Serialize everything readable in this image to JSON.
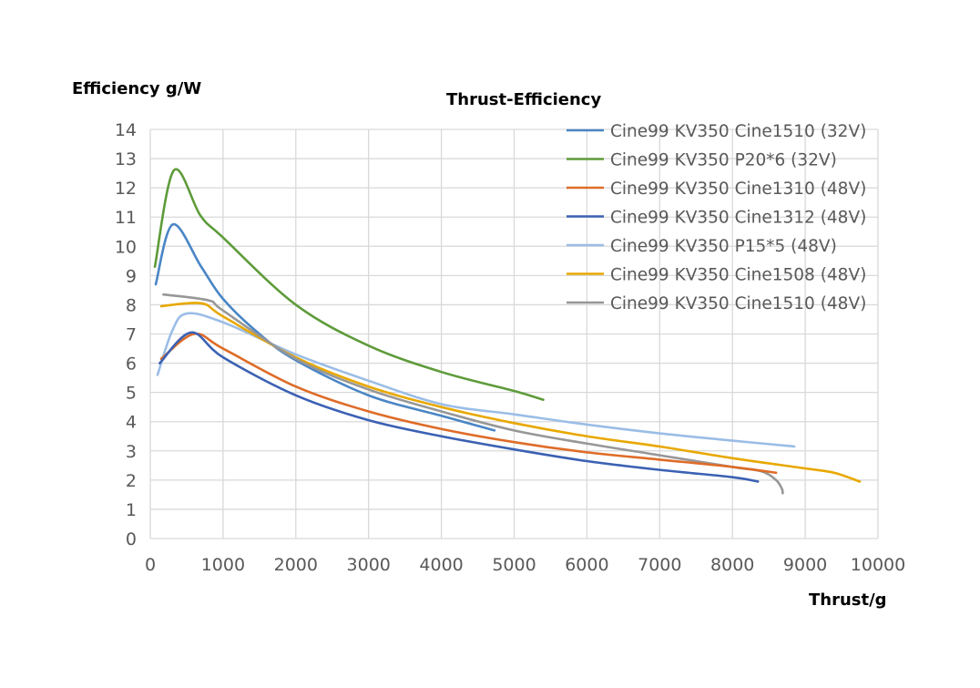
{
  "chart_data": {
    "type": "line",
    "title": "Thrust-Efficiency",
    "xlabel": "Thrust/g",
    "ylabel": "Efficiency g/W",
    "xlim": [
      0,
      10000
    ],
    "ylim": [
      0,
      14
    ],
    "xticks": [
      0,
      1000,
      2000,
      3000,
      4000,
      5000,
      6000,
      7000,
      8000,
      9000,
      10000
    ],
    "yticks": [
      0,
      1,
      2,
      3,
      4,
      5,
      6,
      7,
      8,
      9,
      10,
      11,
      12,
      13,
      14
    ],
    "grid": true,
    "legend_position": "top-right",
    "series": [
      {
        "name": "Cine99 KV350 Cine1510 (32V)",
        "color": "#4a86c5",
        "points": [
          [
            75,
            8.7
          ],
          [
            310,
            10.75
          ],
          [
            700,
            9.3
          ],
          [
            1000,
            8.2
          ],
          [
            1500,
            7.0
          ],
          [
            2000,
            6.1
          ],
          [
            3000,
            4.9
          ],
          [
            4000,
            4.2
          ],
          [
            4730,
            3.7
          ]
        ]
      },
      {
        "name": "Cine99 KV350 P20*6 (32V)",
        "color": "#5e9b3a",
        "points": [
          [
            63,
            9.3
          ],
          [
            325,
            12.6
          ],
          [
            690,
            11.05
          ],
          [
            1000,
            10.3
          ],
          [
            2000,
            8.0
          ],
          [
            3000,
            6.6
          ],
          [
            4000,
            5.7
          ],
          [
            5000,
            5.05
          ],
          [
            5400,
            4.75
          ]
        ]
      },
      {
        "name": "Cine99 KV350 Cine1310 (48V)",
        "color": "#de6c28",
        "points": [
          [
            150,
            6.15
          ],
          [
            600,
            7.0
          ],
          [
            1000,
            6.5
          ],
          [
            2000,
            5.2
          ],
          [
            3000,
            4.35
          ],
          [
            4000,
            3.75
          ],
          [
            5000,
            3.3
          ],
          [
            6000,
            2.95
          ],
          [
            7000,
            2.7
          ],
          [
            8000,
            2.45
          ],
          [
            8600,
            2.25
          ]
        ]
      },
      {
        "name": "Cine99 KV350 Cine1312 (48V)",
        "color": "#3b61b3",
        "points": [
          [
            130,
            6.0
          ],
          [
            560,
            7.05
          ],
          [
            1000,
            6.2
          ],
          [
            2000,
            4.9
          ],
          [
            3000,
            4.05
          ],
          [
            4000,
            3.5
          ],
          [
            5000,
            3.05
          ],
          [
            6000,
            2.65
          ],
          [
            7000,
            2.35
          ],
          [
            8000,
            2.1
          ],
          [
            8350,
            1.95
          ]
        ]
      },
      {
        "name": "Cine99 KV350 P15*5 (48V)",
        "color": "#9bbde6",
        "points": [
          [
            100,
            5.6
          ],
          [
            300,
            7.1
          ],
          [
            500,
            7.7
          ],
          [
            1000,
            7.4
          ],
          [
            2000,
            6.3
          ],
          [
            3000,
            5.4
          ],
          [
            4000,
            4.6
          ],
          [
            5000,
            4.25
          ],
          [
            6000,
            3.9
          ],
          [
            7000,
            3.6
          ],
          [
            8000,
            3.35
          ],
          [
            8850,
            3.15
          ]
        ]
      },
      {
        "name": "Cine99 KV350 Cine1508 (48V)",
        "color": "#e8a800",
        "points": [
          [
            150,
            7.95
          ],
          [
            700,
            8.05
          ],
          [
            1000,
            7.6
          ],
          [
            2000,
            6.2
          ],
          [
            3000,
            5.2
          ],
          [
            4000,
            4.5
          ],
          [
            5000,
            3.95
          ],
          [
            6000,
            3.5
          ],
          [
            7000,
            3.15
          ],
          [
            8000,
            2.75
          ],
          [
            9000,
            2.4
          ],
          [
            9400,
            2.25
          ],
          [
            9750,
            1.95
          ]
        ]
      },
      {
        "name": "Cine99 KV350 Cine1510 (48V)",
        "color": "#979797",
        "points": [
          [
            180,
            8.35
          ],
          [
            800,
            8.15
          ],
          [
            1000,
            7.8
          ],
          [
            2000,
            6.15
          ],
          [
            3000,
            5.1
          ],
          [
            4000,
            4.35
          ],
          [
            5000,
            3.7
          ],
          [
            6000,
            3.25
          ],
          [
            7000,
            2.85
          ],
          [
            8000,
            2.45
          ],
          [
            8400,
            2.3
          ],
          [
            8600,
            2.0
          ],
          [
            8680,
            1.7
          ],
          [
            8690,
            1.55
          ]
        ]
      }
    ]
  }
}
